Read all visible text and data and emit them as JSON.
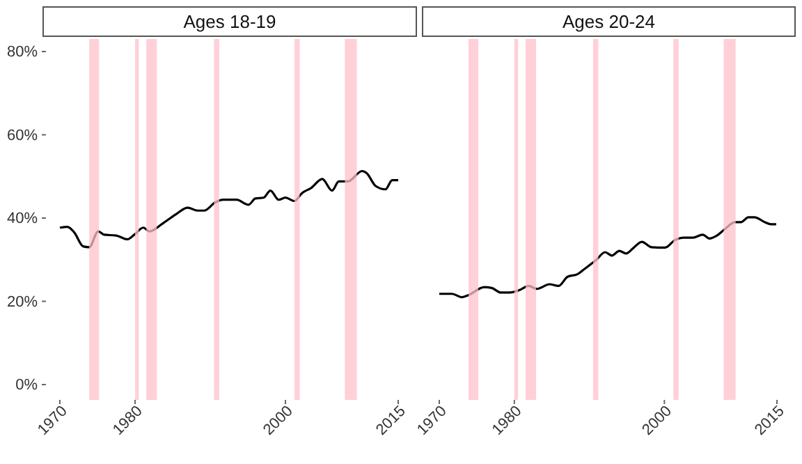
{
  "chart_data": [
    {
      "type": "line",
      "title": "Ages 18-19",
      "xlim": [
        1970,
        2015
      ],
      "xticks": [
        1970,
        1980,
        2000,
        2015
      ],
      "ylim": [
        0,
        80
      ],
      "yticks": [
        {
          "value": 0,
          "label": "0%"
        },
        {
          "value": 20,
          "label": "20%"
        },
        {
          "value": 40,
          "label": "40%"
        },
        {
          "value": 60,
          "label": "60%"
        },
        {
          "value": 80,
          "label": "80%"
        }
      ],
      "grid": false,
      "x": [
        1970,
        1971,
        1971.9,
        1973.1,
        1973.9,
        1975.1,
        1975.9,
        1977.5,
        1979,
        1979.9,
        1981.1,
        1981.9,
        1983.6,
        1985.5,
        1987,
        1988.3,
        1989.2,
        1990.7,
        1991.7,
        1993.5,
        1995.1,
        1996,
        1997.1,
        1998,
        1999.1,
        2000,
        2001.2,
        2002.2,
        2003.4,
        2004.9,
        2006.2,
        2007.1,
        2008.3,
        2010.2,
        2010.8,
        2012,
        2013.3,
        2014.2,
        2015
      ],
      "series": [
        {
          "color": "#000000",
          "values": [
            37.7,
            37.9,
            36.6,
            33.2,
            33,
            36.8,
            36,
            35.8,
            34.9,
            36,
            37.7,
            36.8,
            38.6,
            41,
            42.5,
            41.8,
            41.8,
            43.8,
            44.4,
            44.4,
            43.2,
            44.7,
            44.9,
            46.6,
            44.4,
            44.9,
            44.1,
            46,
            47.2,
            49.4,
            46.6,
            48.8,
            48.8,
            51.3,
            50.8,
            47.7,
            46.9,
            49.1,
            49.1
          ]
        }
      ],
      "bands": [
        {
          "axis": "x",
          "from": 1973.9,
          "to": 1975.2,
          "color": "#ffc0cb"
        },
        {
          "axis": "x",
          "from": 1980,
          "to": 1980.5,
          "color": "#ffc0cb"
        },
        {
          "axis": "x",
          "from": 1981.5,
          "to": 1982.9,
          "color": "#ffc0cb"
        },
        {
          "axis": "x",
          "from": 1990.5,
          "to": 1991.2,
          "color": "#ffc0cb"
        },
        {
          "axis": "x",
          "from": 2001.2,
          "to": 2001.9,
          "color": "#ffc0cb"
        },
        {
          "axis": "x",
          "from": 2007.9,
          "to": 2009.5,
          "color": "#ffc0cb"
        }
      ]
    },
    {
      "type": "line",
      "title": "Ages 20-24",
      "tick_labels": "x",
      "xlim": [
        1970,
        2015
      ],
      "xticks": [
        1970,
        1980,
        2000,
        2015
      ],
      "ylim": [
        0,
        80
      ],
      "grid": false,
      "x": [
        1970,
        1971.7,
        1973,
        1973.9,
        1976,
        1977,
        1978.2,
        1979.4,
        1980.7,
        1981.9,
        1983,
        1984.7,
        1985.9,
        1987.1,
        1988.4,
        1989.3,
        1990.9,
        1992.1,
        1993,
        1994,
        1994.9,
        1995.8,
        1997,
        1998.3,
        2000.1,
        2001.4,
        2002.6,
        2003.8,
        2005.1,
        2006,
        2006.9,
        2008.1,
        2009.4,
        2010.2,
        2011.2,
        2012,
        2013.4,
        2014.2,
        2014.9
      ],
      "series": [
        {
          "color": "#000000",
          "values": [
            21.8,
            21.8,
            21,
            21.5,
            23.4,
            23.2,
            22.1,
            22.1,
            22.7,
            23.7,
            23,
            24.1,
            23.7,
            25.9,
            26.5,
            27.7,
            29.9,
            31.8,
            31,
            32.1,
            31.5,
            32.7,
            34.3,
            33,
            32.9,
            34.7,
            35.3,
            35.3,
            36,
            35.1,
            35.7,
            37.4,
            39,
            39,
            40.2,
            40.2,
            39,
            38.5,
            38.5
          ]
        }
      ],
      "bands": [
        {
          "axis": "x",
          "from": 1973.9,
          "to": 1975.2,
          "color": "#ffc0cb"
        },
        {
          "axis": "x",
          "from": 1980,
          "to": 1980.5,
          "color": "#ffc0cb"
        },
        {
          "axis": "x",
          "from": 1981.5,
          "to": 1982.9,
          "color": "#ffc0cb"
        },
        {
          "axis": "x",
          "from": 1990.5,
          "to": 1991.2,
          "color": "#ffc0cb"
        },
        {
          "axis": "x",
          "from": 2001.2,
          "to": 2001.9,
          "color": "#ffc0cb"
        },
        {
          "axis": "x",
          "from": 2007.9,
          "to": 2009.5,
          "color": "#ffc0cb"
        }
      ]
    }
  ]
}
